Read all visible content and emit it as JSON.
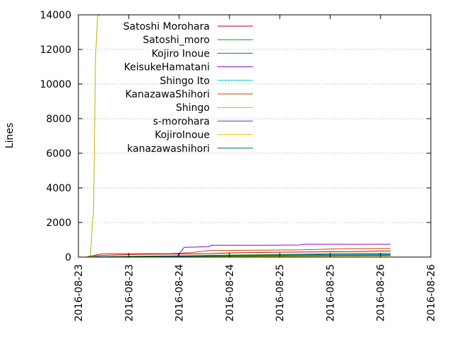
{
  "chart_data": {
    "type": "line",
    "title": "",
    "xlabel": "",
    "ylabel": "Lines",
    "ylim": [
      0,
      14000
    ],
    "xlim": [
      0,
      3.5
    ],
    "grid": true,
    "legend_position": "top-right",
    "y_ticks": [
      0,
      2000,
      4000,
      6000,
      8000,
      10000,
      12000,
      14000
    ],
    "x_tick_positions": [
      0,
      0.5,
      1,
      1.5,
      2,
      2.5,
      3,
      3.5
    ],
    "x_tick_labels": [
      "2016-08-23",
      "2016-08-23",
      "2016-08-24",
      "2016-08-24",
      "2016-08-25",
      "2016-08-25",
      "2016-08-26",
      "2016-08-26"
    ],
    "series": [
      {
        "name": "Satoshi Morohara",
        "color": "#c00000",
        "x": [
          0.08,
          0.12,
          0.3,
          0.6,
          1.0,
          1.3,
          1.5,
          2.0,
          2.7,
          3.0,
          3.1
        ],
        "y": [
          0,
          60,
          120,
          160,
          180,
          200,
          240,
          280,
          320,
          350,
          350
        ]
      },
      {
        "name": "Satoshi_moro",
        "color": "#00a000",
        "x": [
          0.1,
          0.3,
          0.7,
          1.2,
          1.5,
          2.0,
          2.6,
          3.1
        ],
        "y": [
          0,
          30,
          60,
          90,
          120,
          150,
          200,
          220
        ]
      },
      {
        "name": "Kojiro Inoue",
        "color": "#0070b0",
        "x": [
          0.1,
          0.3,
          0.7,
          1.0,
          1.3,
          1.6,
          2.0,
          2.5,
          3.1
        ],
        "y": [
          0,
          20,
          40,
          60,
          80,
          100,
          120,
          150,
          160
        ]
      },
      {
        "name": "KeisukeHamatani",
        "color": "#9400d3",
        "x": [
          0.1,
          0.5,
          0.98,
          1.05,
          1.3,
          1.32,
          1.9,
          2.2,
          2.25,
          3.1
        ],
        "y": [
          0,
          20,
          40,
          560,
          600,
          680,
          680,
          700,
          740,
          740
        ]
      },
      {
        "name": "Shingo Ito",
        "color": "#00c8d8",
        "x": [
          0.1,
          0.6,
          1.2,
          1.8,
          2.3,
          3.1
        ],
        "y": [
          0,
          10,
          20,
          40,
          60,
          80
        ]
      },
      {
        "name": "KanazawaShihori",
        "color": "#c84000",
        "x": [
          0.08,
          0.2,
          0.25,
          0.7,
          0.9,
          1.12,
          1.3,
          1.8,
          2.25,
          2.6,
          3.1
        ],
        "y": [
          0,
          150,
          200,
          200,
          200,
          260,
          380,
          400,
          420,
          480,
          500
        ]
      },
      {
        "name": "Shingo",
        "color": "#c0b000",
        "x": [
          0.08,
          0.1,
          0.12,
          0.14,
          0.15,
          0.16,
          0.17,
          0.19,
          0.21,
          0.3,
          1.0
        ],
        "y": [
          0,
          50,
          100,
          2100,
          2500,
          6900,
          11500,
          13900,
          14000,
          14000,
          14000
        ]
      },
      {
        "name": "s-morohara",
        "color": "#3050d0",
        "x": [
          0.1,
          0.4,
          0.9,
          1.4,
          2.0,
          2.6,
          3.1
        ],
        "y": [
          0,
          20,
          40,
          60,
          80,
          100,
          110
        ]
      },
      {
        "name": "KojiroInoue",
        "color": "#e8c000",
        "x": [
          0.1,
          0.5,
          1.0,
          1.5,
          2.0,
          2.5,
          3.1
        ],
        "y": [
          0,
          10,
          20,
          30,
          40,
          50,
          60
        ]
      },
      {
        "name": "kanazawashihori",
        "color": "#007030",
        "x": [
          0.1,
          0.5,
          1.0,
          1.5,
          2.0,
          2.5,
          3.1
        ],
        "y": [
          0,
          20,
          40,
          60,
          80,
          100,
          120
        ]
      }
    ]
  }
}
